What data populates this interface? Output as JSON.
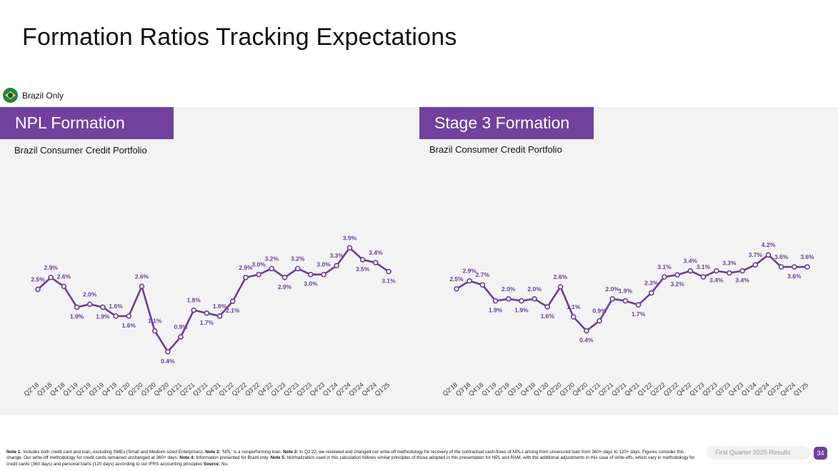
{
  "title": "Formation Ratios Tracking Expectations",
  "badge": {
    "label": "Brazil Only",
    "icon": "brazil-flag-icon"
  },
  "colors": {
    "accent": "#72409e",
    "line": "#6a3d96",
    "panel_bg": "#f3f3f3"
  },
  "footnote": {
    "note1_label": "Note 1:",
    "note1_text": " Includes both credit card and loan, excluding SMEs (Small and Medium-sized Enterprises). ",
    "note2_label": "Note 2:",
    "note2_text": " 'NPL' is a nonperforming loan. ",
    "note3_label": "Note 3:",
    "note3_text": " In Q2'22, we reviewed and changed our write-off methodology for recovery of the contractual cash-flows of NPLs arising from unsecured loan from 360+ days to 120+ days. Figures consider this change. Our write-off methodology for credit cards remained unchanged at 360+ days. ",
    "note4_label": "Note 4:",
    "note4_text": " Information presented for Brazil only. ",
    "note5_label": "Note 5:",
    "note5_text": " Normalization used in this calculation follows similar principles of those adopted in this presentation for NPL and RAM, with the additional adjustments in this case of write-offs, which vary in methodology for credit cards (360 days) and personal loans (120 days) according to our IFRS accounting principles ",
    "source_label": "Source:",
    "source_text": " Nu."
  },
  "report_label": "First Quarter 2025 Results",
  "page_number": "34",
  "chart_data": [
    {
      "type": "line",
      "title": "NPL Formation",
      "subtitle": "Brazil Consumer Credit Portfolio",
      "categories": [
        "Q2'18",
        "Q3'18",
        "Q4'18",
        "Q1'19",
        "Q2'19",
        "Q3'19",
        "Q4'19",
        "Q1'20",
        "Q2'20",
        "Q3'20",
        "Q4'20",
        "Q1'21",
        "Q2'21",
        "Q3'21",
        "Q4'21",
        "Q1'22",
        "Q2'22",
        "Q3'22",
        "Q4'22",
        "Q1'23",
        "Q2'23",
        "Q3'23",
        "Q4'23",
        "Q1'24",
        "Q2'24",
        "Q3'24",
        "Q4'24",
        "Q1'25"
      ],
      "values": [
        2.5,
        2.9,
        2.6,
        1.9,
        2.0,
        1.9,
        1.6,
        1.6,
        2.6,
        1.1,
        0.4,
        0.9,
        1.8,
        1.7,
        1.6,
        2.1,
        2.9,
        3.0,
        3.2,
        2.9,
        3.2,
        3.0,
        3.0,
        3.3,
        3.9,
        3.5,
        3.4,
        3.1
      ],
      "value_labels": [
        "2.5%",
        "2.9%",
        "2.6%",
        "1.9%",
        "2.0%",
        "1.9%",
        "1.6%",
        "1.6%",
        "2.6%",
        "1.1%",
        "0.4%",
        "0.9%",
        "1.8%",
        "1.7%",
        "1.6%",
        "2.1%",
        "2.9%",
        "3.0%",
        "3.2%",
        "2.9%",
        "3.2%",
        "3.0%",
        "3.0%",
        "3.3%",
        "3.9%",
        "3.5%",
        "3.4%",
        "3.1%"
      ],
      "label_positions": [
        "above",
        "above",
        "above",
        "below",
        "above",
        "below",
        "above",
        "below",
        "above",
        "above",
        "below",
        "above",
        "above",
        "below",
        "above",
        "below",
        "above",
        "above",
        "above",
        "below",
        "above",
        "below",
        "above",
        "above",
        "above",
        "below",
        "above",
        "below"
      ],
      "y_unit": "%",
      "ylim": [
        0,
        4.5
      ],
      "grid": false
    },
    {
      "type": "line",
      "title": "Stage 3 Formation",
      "subtitle": "Brazil Consumer Credit Portfolio",
      "categories": [
        "Q2'18",
        "Q3'18",
        "Q4'18",
        "Q1'19",
        "Q2'19",
        "Q3'19",
        "Q4'19",
        "Q1'20",
        "Q2'20",
        "Q3'20",
        "Q4'20",
        "Q1'21",
        "Q2'21",
        "Q3'21",
        "Q4'21",
        "Q1'22",
        "Q2'22",
        "Q3'22",
        "Q4'22",
        "Q1'23",
        "Q2'23",
        "Q3'23",
        "Q4'23",
        "Q1'24",
        "Q2'24",
        "Q3'24",
        "Q4'24",
        "Q1'25"
      ],
      "values": [
        2.5,
        2.9,
        2.7,
        1.9,
        2.0,
        1.9,
        2.0,
        1.6,
        2.6,
        1.1,
        0.4,
        0.9,
        2.0,
        1.9,
        1.7,
        2.3,
        3.1,
        3.2,
        3.4,
        3.1,
        3.4,
        3.3,
        3.4,
        3.7,
        4.2,
        3.6,
        3.6,
        3.6
      ],
      "value_labels": [
        "2.5%",
        "2.9%",
        "2.7%",
        "1.9%",
        "2.0%",
        "1.9%",
        "2.0%",
        "1.6%",
        "2.6%",
        "1.1%",
        "0.4%",
        "0.9%",
        "2.0%",
        "1.9%",
        "1.7%",
        "2.3%",
        "3.1%",
        "3.2%",
        "3.4%",
        "3.1%",
        "3.4%",
        "3.3%",
        "3.4%",
        "3.7%",
        "4.2%",
        "3.6%",
        "3.6%",
        "3.6%"
      ],
      "label_positions": [
        "above",
        "above",
        "above",
        "below",
        "above",
        "below",
        "above",
        "below",
        "above",
        "above",
        "below",
        "above",
        "above",
        "above",
        "below",
        "above",
        "above",
        "below",
        "above",
        "above",
        "below",
        "above",
        "below",
        "above",
        "above",
        "above",
        "below",
        "above"
      ],
      "y_unit": "%",
      "ylim": [
        0,
        4.5
      ],
      "grid": false
    }
  ]
}
